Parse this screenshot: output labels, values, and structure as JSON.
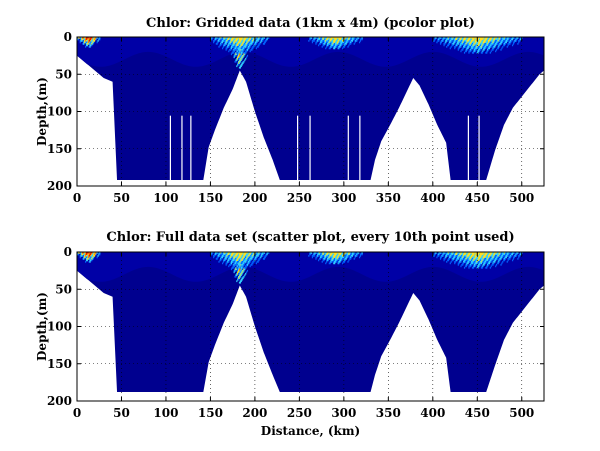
{
  "chart_data": [
    {
      "type": "heatmap",
      "title": "Chlor: Gridded data (1km x 4m) (pcolor plot)",
      "xlabel": "",
      "ylabel": "Depth,(m)",
      "xlim": [
        0,
        525
      ],
      "ylim": [
        200,
        0
      ],
      "xticks": [
        0,
        50,
        100,
        150,
        200,
        250,
        300,
        350,
        400,
        450,
        500
      ],
      "yticks": [
        0,
        50,
        100,
        150,
        200
      ],
      "grid": true,
      "y_reversed": true,
      "colormap": "jet",
      "data_bottom_profile": {
        "distance_km": [
          0,
          10,
          20,
          25,
          30,
          40,
          45,
          142,
          148,
          155,
          165,
          175,
          183,
          190,
          200,
          210,
          220,
          228,
          238,
          330,
          335,
          342,
          352,
          362,
          372,
          378,
          385,
          395,
          405,
          415,
          420,
          460,
          470,
          480,
          490,
          500,
          510,
          520,
          525
        ],
        "max_depth_m": [
          25,
          35,
          45,
          50,
          55,
          60,
          192,
          192,
          148,
          125,
          95,
          70,
          45,
          60,
          100,
          135,
          165,
          192,
          192,
          192,
          165,
          140,
          118,
          95,
          70,
          55,
          65,
          90,
          118,
          142,
          192,
          192,
          152,
          118,
          95,
          80,
          65,
          50,
          45
        ]
      },
      "high_concentration_patches": [
        {
          "distance_km": [
            0,
            25
          ],
          "depth_m": [
            0,
            12
          ],
          "level": "high"
        },
        {
          "distance_km": [
            170,
            195
          ],
          "depth_m": [
            0,
            40
          ],
          "level": "high"
        },
        {
          "distance_km": [
            150,
            215
          ],
          "depth_m": [
            0,
            20
          ],
          "level": "medium"
        },
        {
          "distance_km": [
            260,
            320
          ],
          "depth_m": [
            0,
            15
          ],
          "level": "medium"
        },
        {
          "distance_km": [
            400,
            500
          ],
          "depth_m": [
            0,
            20
          ],
          "level": "medium"
        }
      ]
    },
    {
      "type": "scatter",
      "title": "Chlor: Full data set (scatter plot, every 10th point used)",
      "xlabel": "Distance, (km)",
      "ylabel": "Depth,(m)",
      "xlim": [
        0,
        525
      ],
      "ylim": [
        200,
        0
      ],
      "xticks": [
        0,
        50,
        100,
        150,
        200,
        250,
        300,
        350,
        400,
        450,
        500
      ],
      "yticks": [
        0,
        50,
        100,
        150,
        200
      ],
      "grid": true,
      "y_reversed": true,
      "colormap": "jet",
      "data_bottom_profile": {
        "distance_km": [
          0,
          10,
          20,
          25,
          30,
          40,
          45,
          142,
          148,
          155,
          165,
          175,
          183,
          190,
          200,
          210,
          220,
          228,
          238,
          330,
          335,
          342,
          352,
          362,
          372,
          378,
          385,
          395,
          405,
          415,
          420,
          460,
          470,
          480,
          490,
          500,
          510,
          520,
          525
        ],
        "max_depth_m": [
          25,
          35,
          45,
          50,
          55,
          60,
          188,
          188,
          148,
          125,
          95,
          70,
          45,
          60,
          100,
          135,
          165,
          188,
          188,
          188,
          165,
          140,
          118,
          95,
          70,
          55,
          65,
          90,
          118,
          142,
          188,
          188,
          152,
          118,
          95,
          80,
          65,
          50,
          45
        ]
      },
      "high_concentration_patches": [
        {
          "distance_km": [
            0,
            25
          ],
          "depth_m": [
            0,
            12
          ],
          "level": "high"
        },
        {
          "distance_km": [
            170,
            195
          ],
          "depth_m": [
            0,
            40
          ],
          "level": "high"
        },
        {
          "distance_km": [
            150,
            215
          ],
          "depth_m": [
            0,
            20
          ],
          "level": "medium"
        },
        {
          "distance_km": [
            260,
            320
          ],
          "depth_m": [
            0,
            15
          ],
          "level": "medium"
        },
        {
          "distance_km": [
            400,
            500
          ],
          "depth_m": [
            0,
            20
          ],
          "level": "medium"
        }
      ]
    }
  ],
  "colors": {
    "background_data": "#00008f",
    "deep": "#0000a8",
    "mid": "#0060ff",
    "cyan": "#30d0ff",
    "yellow": "#ffe020",
    "orange": "#ff8000",
    "red": "#e01000"
  }
}
